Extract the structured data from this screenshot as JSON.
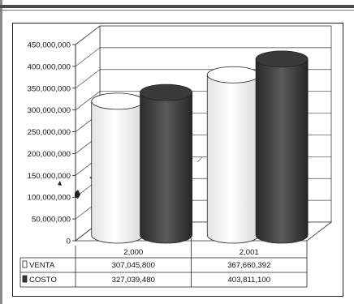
{
  "chart_data": {
    "type": "bar",
    "style": "3d-cylinder",
    "categories": [
      "2,000",
      "2,001"
    ],
    "series": [
      {
        "name": "VENTA",
        "values": [
          307045800,
          367660392
        ],
        "color": "#ffffff"
      },
      {
        "name": "COSTO",
        "values": [
          327039480,
          403811100
        ],
        "color": "#3c3c3c"
      }
    ],
    "y_ticks": [
      "450,000,000",
      "400,000,000",
      "350,000,000",
      "300,000,000",
      "250,000,000",
      "200,000,000",
      "150,000,000",
      "100,000,000",
      "50,000,000",
      "0"
    ],
    "ylim": [
      0,
      450000000
    ],
    "grid": true,
    "legend": "data-table-below",
    "data_table": {
      "rows": [
        {
          "label": "VENTA",
          "cells": [
            "307,045,800",
            "367,660,392"
          ]
        },
        {
          "label": "COSTO",
          "cells": [
            "327,039,480",
            "403,811,100"
          ]
        }
      ]
    }
  }
}
